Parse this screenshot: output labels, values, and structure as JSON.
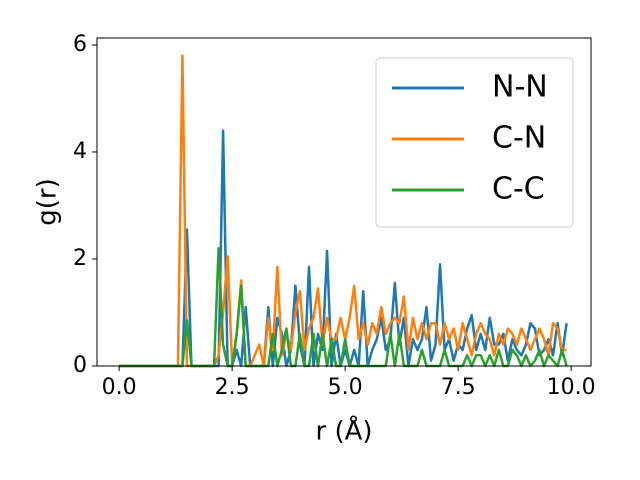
{
  "chart_data": {
    "type": "line",
    "xlabel": "r (Å)",
    "ylabel": "g(r)",
    "x": [
      0,
      0.1,
      0.2,
      0.3,
      0.4,
      0.5,
      0.6,
      0.7,
      0.8,
      0.9,
      1,
      1.1,
      1.2,
      1.3,
      1.4,
      1.5,
      1.6,
      1.7,
      1.8,
      1.9,
      2,
      2.1,
      2.2,
      2.3,
      2.4,
      2.5,
      2.6,
      2.7,
      2.8,
      2.9,
      3,
      3.1,
      3.2,
      3.3,
      3.4,
      3.5,
      3.6,
      3.7,
      3.8,
      3.9,
      4,
      4.1,
      4.2,
      4.3,
      4.4,
      4.5,
      4.6,
      4.7,
      4.8,
      4.9,
      5,
      5.1,
      5.2,
      5.3,
      5.4,
      5.5,
      5.6,
      5.7,
      5.8,
      5.9,
      6,
      6.1,
      6.2,
      6.3,
      6.4,
      6.5,
      6.6,
      6.7,
      6.8,
      6.9,
      7,
      7.1,
      7.2,
      7.3,
      7.4,
      7.5,
      7.6,
      7.7,
      7.8,
      7.9,
      8,
      8.1,
      8.2,
      8.3,
      8.4,
      8.5,
      8.6,
      8.7,
      8.8,
      8.9,
      9,
      9.1,
      9.2,
      9.3,
      9.4,
      9.5,
      9.6,
      9.7,
      9.8,
      9.9
    ],
    "series": [
      {
        "name": "N-N",
        "color": "#1f77b4",
        "values": [
          0,
          0,
          0,
          0,
          0,
          0,
          0,
          0,
          0,
          0,
          0,
          0,
          0,
          0,
          0,
          2.55,
          0,
          0,
          0,
          0,
          0,
          0,
          0,
          4.4,
          0,
          0,
          0.3,
          0,
          1.1,
          0,
          0,
          0,
          0,
          1.1,
          0,
          0.9,
          0.6,
          0,
          0.3,
          1.5,
          0.4,
          0,
          1.85,
          0,
          0.6,
          0.3,
          2.15,
          0,
          0.6,
          0,
          0.3,
          0,
          0.3,
          0,
          1.4,
          0,
          0.3,
          0.5,
          0.9,
          0.3,
          0.5,
          1.55,
          0.4,
          0.9,
          0,
          0.5,
          0.3,
          0.5,
          1.1,
          0.1,
          0.4,
          1.9,
          0.3,
          0.5,
          0.1,
          0.4,
          0.3,
          0.7,
          0.95,
          0.3,
          0.6,
          0.3,
          0.9,
          0.4,
          0.4,
          0.6,
          0.1,
          0.5,
          0.3,
          0.2,
          0.4,
          0.8,
          0.7,
          0.2,
          0.3,
          0.5,
          0.2,
          0.8,
          0.2,
          0.8
        ]
      },
      {
        "name": "C-N",
        "color": "#ff7f0e",
        "values": [
          0,
          0,
          0,
          0,
          0,
          0,
          0,
          0,
          0,
          0,
          0,
          0,
          0,
          0,
          5.8,
          0,
          0,
          0,
          0,
          0,
          0,
          0,
          0.2,
          1.0,
          2.05,
          0,
          0.6,
          1.6,
          0,
          0,
          0.2,
          0.4,
          0,
          0.9,
          0.3,
          1.85,
          0.2,
          0.6,
          0.3,
          1.0,
          1.4,
          0.3,
          0.7,
          0.9,
          1.45,
          0.4,
          0.9,
          0.5,
          0.5,
          0.9,
          0.5,
          0.9,
          1.5,
          0.5,
          0.8,
          0.4,
          0.8,
          0.6,
          1.1,
          0.6,
          0.8,
          0.9,
          0.8,
          1.3,
          0.3,
          0.9,
          0.5,
          0.8,
          0.5,
          0.8,
          0.8,
          0.4,
          0.8,
          0.5,
          0.7,
          0.3,
          0.8,
          0.5,
          0.2,
          0.6,
          0.8,
          0.6,
          0.5,
          0.2,
          0.6,
          0.4,
          0.7,
          0.6,
          0.4,
          0.7,
          0.5,
          0.3,
          0.5,
          0.7,
          0.5,
          0.2,
          0.8,
          0.7,
          0.3,
          0.3
        ]
      },
      {
        "name": "C-C",
        "color": "#2ca02c",
        "values": [
          0,
          0,
          0,
          0,
          0,
          0,
          0,
          0,
          0,
          0,
          0,
          0,
          0,
          0,
          0,
          0.85,
          0,
          0,
          0,
          0,
          0,
          0,
          2.2,
          0.4,
          0,
          0,
          0.6,
          1.5,
          0,
          0,
          0,
          0,
          0,
          0,
          0.6,
          0,
          0.3,
          0.7,
          0,
          0,
          0.6,
          0,
          0,
          0.6,
          0,
          0.6,
          0,
          0.5,
          0,
          0,
          0.5,
          0,
          0,
          0,
          0,
          0,
          0,
          0,
          0,
          0,
          0.6,
          0,
          0.6,
          0,
          0,
          0,
          0,
          0.3,
          0,
          0,
          0,
          0,
          0.3,
          0,
          0,
          0,
          0,
          0.2,
          0,
          0.2,
          0.2,
          0,
          0.2,
          0,
          0.3,
          0,
          0,
          0.3,
          0.2,
          0,
          0.2,
          0,
          0.1,
          0.3,
          0,
          0.2,
          0.1,
          0,
          0.3,
          0
        ]
      }
    ],
    "xlim": [
      -0.49,
      10.44
    ],
    "ylim": [
      0,
      6.13
    ],
    "xticks": [
      {
        "value": 0,
        "label": "0.0"
      },
      {
        "value": 2.5,
        "label": "2.5"
      },
      {
        "value": 5,
        "label": "5.0"
      },
      {
        "value": 7.5,
        "label": "7.5"
      },
      {
        "value": 10,
        "label": "10.0"
      }
    ],
    "yticks": [
      0,
      2,
      4,
      6
    ],
    "legend": "upper right"
  }
}
